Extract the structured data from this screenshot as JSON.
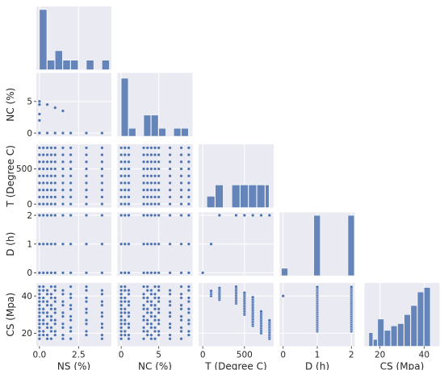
{
  "chart_data": {
    "type": "pairplot",
    "style": {
      "panel_bg": "#eaeaf2",
      "grid": "#ffffff",
      "mark": "#4c72b0",
      "text": "#262626"
    },
    "corner": true,
    "variables": [
      {
        "key": "NS",
        "label": "NS (%)",
        "range": [
          -0.2,
          4.6
        ],
        "ticks": [
          0.0,
          2.5
        ],
        "tick_labels": [
          "0.0",
          "2.5"
        ]
      },
      {
        "key": "NC",
        "label": "NC (%)",
        "range": [
          -0.5,
          9.5
        ],
        "ticks": [
          0,
          5
        ],
        "tick_labels": [
          "0",
          "5"
        ]
      },
      {
        "key": "T",
        "label": "T (Degree C)",
        "range": [
          -50,
          850
        ],
        "ticks": [
          0,
          500
        ],
        "tick_labels": [
          "0",
          "500"
        ]
      },
      {
        "key": "D",
        "label": "D (h)",
        "range": [
          -0.1,
          2.1
        ],
        "ticks": [
          0,
          1,
          2
        ],
        "tick_labels": [
          "0",
          "1",
          "2"
        ]
      },
      {
        "key": "CS",
        "label": "CS (Mpa)",
        "range": [
          13,
          47
        ],
        "ticks": [
          20,
          40
        ],
        "tick_labels": [
          "20",
          "40"
        ]
      }
    ],
    "histograms": [
      {
        "var": "NS",
        "bins": [
          [
            0.0,
            0.5,
            19
          ],
          [
            0.5,
            1.0,
            3
          ],
          [
            1.0,
            1.5,
            6
          ],
          [
            1.5,
            2.0,
            3
          ],
          [
            2.0,
            2.5,
            3
          ],
          [
            2.5,
            3.0,
            0
          ],
          [
            3.0,
            3.5,
            3
          ],
          [
            3.5,
            4.0,
            0
          ],
          [
            4.0,
            4.5,
            3
          ]
        ],
        "ymax": 20
      },
      {
        "var": "NC",
        "bins": [
          [
            0,
            1,
            11
          ],
          [
            1,
            2,
            1.5
          ],
          [
            2,
            3,
            0
          ],
          [
            3,
            4,
            4
          ],
          [
            4,
            5,
            4
          ],
          [
            5,
            6,
            1.5
          ],
          [
            6,
            7,
            0
          ],
          [
            7,
            8,
            1.5
          ],
          [
            8,
            9,
            1.5
          ]
        ],
        "ymax": 12
      },
      {
        "var": "T",
        "bins": [
          [
            50,
            150,
            1
          ],
          [
            150,
            250,
            2
          ],
          [
            250,
            350,
            0
          ],
          [
            350,
            450,
            2
          ],
          [
            450,
            550,
            2
          ],
          [
            550,
            650,
            2
          ],
          [
            650,
            750,
            2
          ],
          [
            750,
            800,
            2
          ]
        ],
        "ymax": 5.6
      },
      {
        "var": "D",
        "bins": [
          [
            -0.05,
            0.15,
            1
          ],
          [
            0.15,
            0.9,
            0
          ],
          [
            0.9,
            1.1,
            8.2
          ],
          [
            1.1,
            1.9,
            0
          ],
          [
            1.9,
            2.1,
            8.2
          ]
        ],
        "ymax": 8.6
      },
      {
        "var": "CS",
        "bins": [
          [
            15,
            17,
            3
          ],
          [
            17,
            19,
            1.5
          ],
          [
            19,
            22,
            6
          ],
          [
            22,
            25,
            3.5
          ],
          [
            25,
            28,
            4.5
          ],
          [
            28,
            31,
            5
          ],
          [
            31,
            34,
            7
          ],
          [
            34,
            37,
            9
          ],
          [
            37,
            40,
            12
          ],
          [
            40,
            43,
            13
          ]
        ],
        "ymax": 14
      }
    ],
    "levels": {
      "NS": [
        0.0,
        0.25,
        0.5,
        0.75,
        1.0,
        1.5,
        2.0,
        3.0,
        4.0
      ],
      "NC": [
        0,
        0.5,
        1,
        3,
        3.5,
        4,
        4.5,
        5,
        6.5,
        8,
        9
      ],
      "T": [
        100,
        200,
        300,
        400,
        500,
        600,
        700,
        800
      ],
      "D": [
        0,
        1,
        2
      ],
      "CS": [
        17,
        19,
        21,
        23,
        25,
        27,
        29,
        31,
        33,
        35,
        37,
        39,
        41,
        43,
        45
      ]
    },
    "scatter": {
      "NC_vs_NS": {
        "x": [
          0.0,
          0.0,
          0.0,
          0.0,
          0.0,
          0.5,
          0.5,
          1.0,
          1.0,
          1.5,
          1.5,
          2.0,
          3.0,
          4.0
        ],
        "y": [
          0,
          2,
          3,
          4.5,
          5,
          4.5,
          0,
          4,
          0,
          3.5,
          0,
          0,
          0,
          0
        ]
      },
      "T_vs_D_points": {
        "T": [
          100,
          200,
          400,
          500,
          600,
          700,
          800
        ],
        "D": [
          1,
          2,
          2,
          2,
          2,
          2,
          2
        ]
      },
      "CS_vs_T_columns": {
        "T": [
          100,
          200,
          400,
          500,
          600,
          700,
          800
        ],
        "CS_min": [
          40,
          38,
          36,
          30,
          24,
          20,
          17
        ],
        "CS_max": [
          43,
          45,
          45,
          42,
          40,
          32,
          27
        ]
      }
    }
  }
}
